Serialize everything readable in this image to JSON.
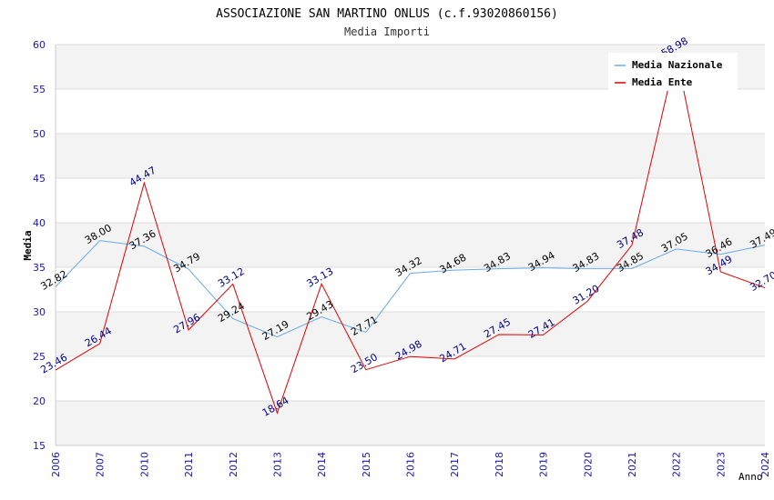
{
  "chart_data": {
    "type": "line",
    "title": "ASSOCIAZIONE SAN MARTINO ONLUS (c.f.93020860156)",
    "subtitle": "Media Importi",
    "xlabel": "Anno",
    "ylabel": "Media",
    "ylim": [
      15,
      60
    ],
    "yticks": [
      15,
      20,
      25,
      30,
      35,
      40,
      45,
      50,
      55,
      60
    ],
    "grid": true,
    "legend_position": "top-right",
    "categories": [
      "2006",
      "2007",
      "2010",
      "2011",
      "2012",
      "2013",
      "2014",
      "2015",
      "2016",
      "2017",
      "2018",
      "2019",
      "2020",
      "2021",
      "2022",
      "2023",
      "2024"
    ],
    "series": [
      {
        "name": "Media Nazionale",
        "color": "#6aaae6",
        "label_color": "#000000",
        "values": [
          32.82,
          38.0,
          37.36,
          34.79,
          29.24,
          27.19,
          29.43,
          27.71,
          34.32,
          34.68,
          34.83,
          34.94,
          34.83,
          34.85,
          37.05,
          36.46,
          37.49
        ],
        "labels": [
          "32.82",
          "38.00",
          "37.36",
          "34.79",
          "29.24",
          "27.19",
          "29.43",
          "27.71",
          "34.32",
          "34.68",
          "34.83",
          "34.94",
          "34.83",
          "34.85",
          "37.05",
          "36.46",
          "37.49"
        ]
      },
      {
        "name": "Media Ente",
        "color": "#e00000",
        "label_color": "#000080",
        "values": [
          23.46,
          26.44,
          44.47,
          27.96,
          33.12,
          18.64,
          33.13,
          23.5,
          24.98,
          24.71,
          27.45,
          27.41,
          31.2,
          37.48,
          58.98,
          34.49,
          32.7
        ],
        "labels": [
          "23.46",
          "26.44",
          "44.47",
          "27.96",
          "33.12",
          "18.64",
          "33.13",
          "23.50",
          "24.98",
          "24.71",
          "27.45",
          "27.41",
          "31.20",
          "37.48",
          "58.98",
          "34.49",
          "32.70"
        ]
      }
    ]
  }
}
